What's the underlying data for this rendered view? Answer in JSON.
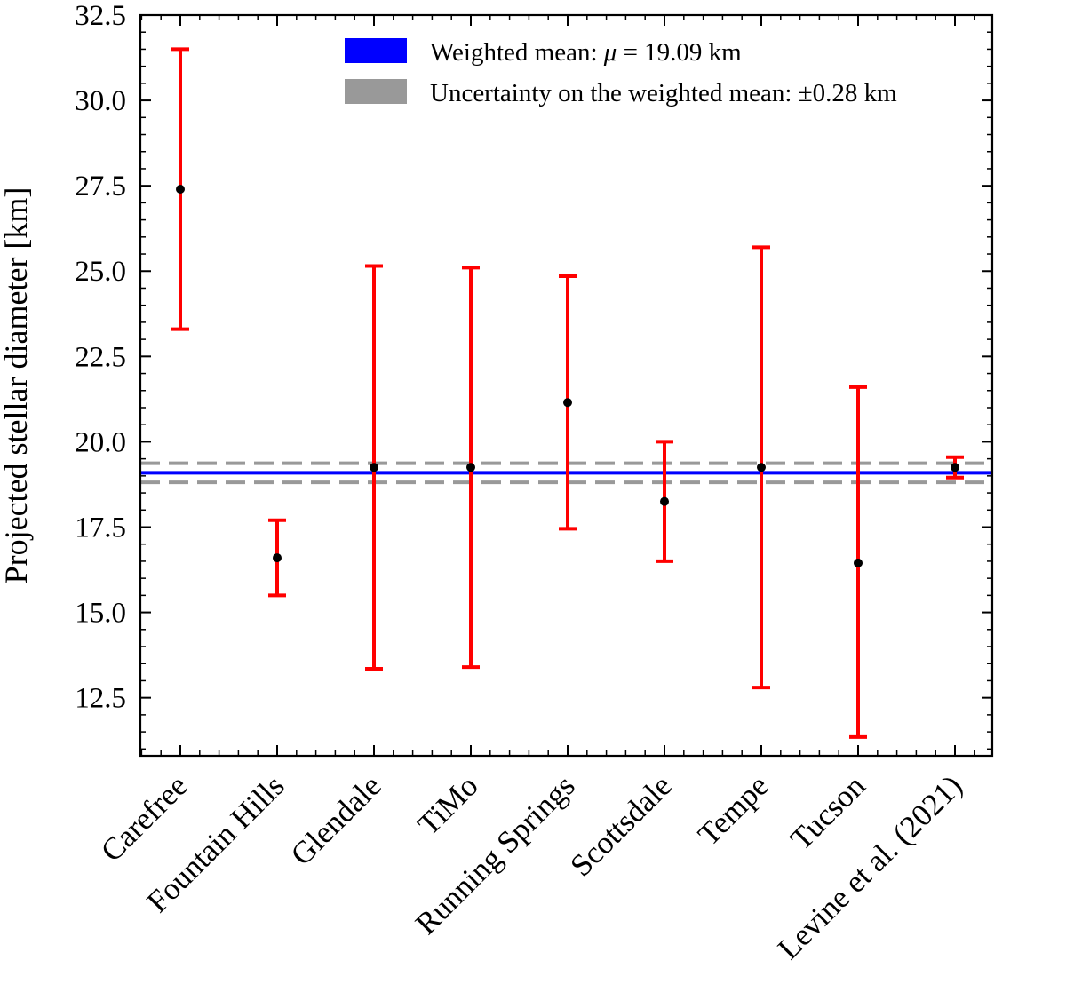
{
  "chart_data": {
    "type": "scatter",
    "title": "",
    "xlabel": "",
    "ylabel": "Projected stellar diameter [km]",
    "ylim": [
      10.8,
      32.5
    ],
    "yticks": [
      12.5,
      15.0,
      17.5,
      20.0,
      22.5,
      25.0,
      27.5,
      30.0,
      32.5
    ],
    "ytick_labels": [
      "12.5",
      "15.0",
      "17.5",
      "20.0",
      "22.5",
      "25.0",
      "27.5",
      "30.0",
      "32.5"
    ],
    "grid": false,
    "legend_position": "top-right",
    "categories": [
      "Carefree",
      "Fountain Hills",
      "Glendale",
      "TiMo",
      "Running Springs",
      "Scottsdale",
      "Tempe",
      "Tucson",
      "Levine et al. (2021)"
    ],
    "series": [
      {
        "name": "Projected stellar diameter",
        "values": [
          27.4,
          16.6,
          19.25,
          19.25,
          21.15,
          18.25,
          19.25,
          16.45,
          19.25
        ],
        "err_low": [
          23.3,
          15.5,
          13.35,
          13.4,
          17.45,
          16.5,
          12.8,
          11.35,
          18.95
        ],
        "err_high": [
          31.5,
          17.7,
          25.15,
          25.1,
          24.85,
          20.0,
          25.7,
          21.6,
          19.55
        ],
        "marker_color": "#000000",
        "error_color": "#ff0000"
      }
    ],
    "weighted_mean": 19.09,
    "uncertainty": 0.28,
    "mean_color": "#0000ff",
    "uncertainty_color": "#999999",
    "legend": [
      {
        "label": "Weighted mean: μ = 19.09 km",
        "color": "#0000ff"
      },
      {
        "label": "Uncertainty on the weighted mean: ±0.28 km",
        "color": "#999999"
      }
    ]
  }
}
